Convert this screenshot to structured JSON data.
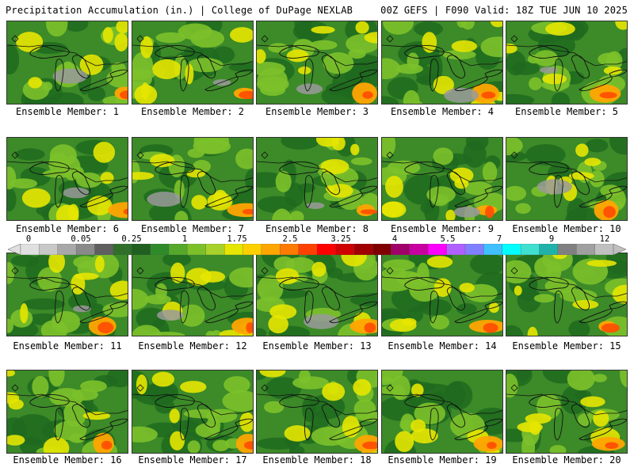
{
  "header": {
    "left": "Precipitation Accumulation (in.) | College of DuPage NEXLAB",
    "right": "00Z GEFS | F090 Valid: 18Z TUE JUN 10 2025"
  },
  "members": [
    "Ensemble Member: 1",
    "Ensemble Member: 2",
    "Ensemble Member: 3",
    "Ensemble Member: 4",
    "Ensemble Member: 5",
    "Ensemble Member: 6",
    "Ensemble Member: 7",
    "Ensemble Member: 8",
    "Ensemble Member: 9",
    "Ensemble Member: 10",
    "Ensemble Member: 11",
    "Ensemble Member: 12",
    "Ensemble Member: 13",
    "Ensemble Member: 14",
    "Ensemble Member: 15",
    "Ensemble Member: 16",
    "Ensemble Member: 17",
    "Ensemble Member: 18",
    "Ensemble Member: 19",
    "Ensemble Member: 20"
  ],
  "colorbar": {
    "labels": [
      "0",
      "0.05",
      "0.25",
      "1",
      "1.75",
      "2.5",
      "3.25",
      "4",
      "5.5",
      "7",
      "9",
      "12"
    ],
    "colors": [
      "#e0e0e0",
      "#c8c8c8",
      "#a8a8a8",
      "#8a8a8a",
      "#5f5f5f",
      "#2f6f2a",
      "#1f5f20",
      "#2f8a2a",
      "#55a82a",
      "#7cc12a",
      "#a8d22a",
      "#e6e600",
      "#ffd000",
      "#ffa500",
      "#ff7a00",
      "#ff4000",
      "#ff0000",
      "#d00000",
      "#a00000",
      "#800000",
      "#a0006a",
      "#c800a0",
      "#ff00ff",
      "#b060ff",
      "#7f7fff",
      "#40c0ff",
      "#00ffff",
      "#40e0d0",
      "#20b2aa",
      "#808080",
      "#a0a0a0",
      "#c0c0c0"
    ]
  }
}
